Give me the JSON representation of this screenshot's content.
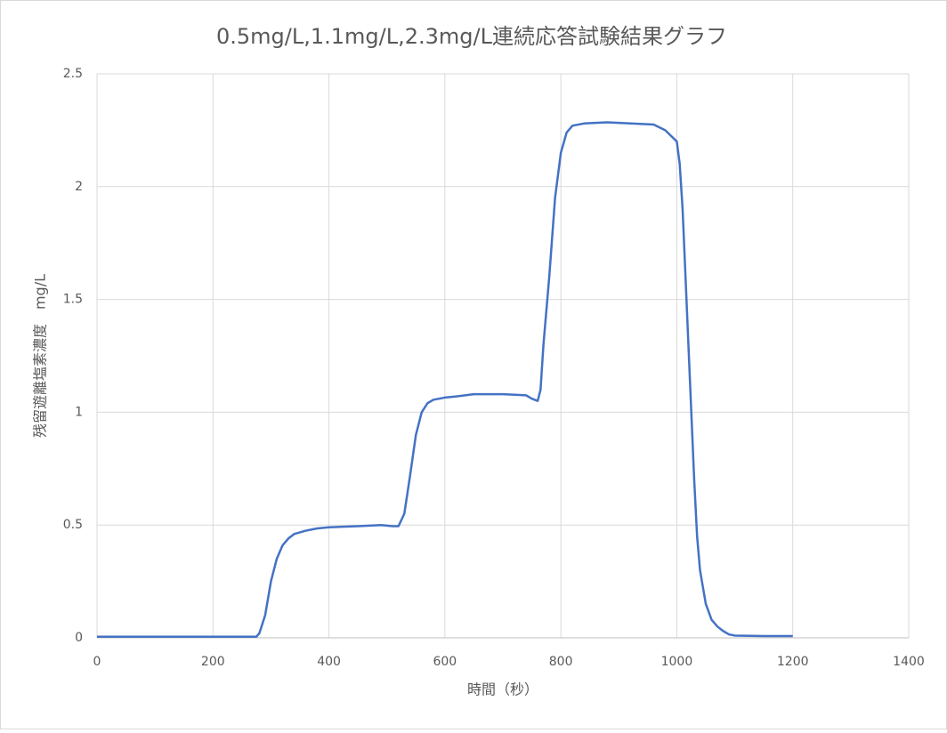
{
  "chart_data": {
    "type": "line",
    "title": "0.5mg/L,1.1mg/L,2.3mg/L連続応答試験結果グラフ",
    "x_label": "時間（秒）",
    "y_label": "残留遊離塩素濃度　mg/L",
    "x": [
      0,
      50,
      100,
      150,
      200,
      250,
      275,
      280,
      290,
      300,
      310,
      320,
      330,
      340,
      360,
      380,
      400,
      450,
      490,
      510,
      520,
      530,
      540,
      550,
      560,
      570,
      580,
      600,
      620,
      650,
      700,
      740,
      750,
      760,
      765,
      770,
      780,
      790,
      800,
      810,
      820,
      840,
      880,
      920,
      960,
      980,
      1000,
      1005,
      1010,
      1015,
      1020,
      1025,
      1030,
      1035,
      1040,
      1050,
      1060,
      1070,
      1080,
      1090,
      1100,
      1150,
      1200
    ],
    "series": [
      {
        "name": "残留遊離塩素濃度",
        "color": "#4472c4",
        "values": [
          0.005,
          0.005,
          0.005,
          0.005,
          0.005,
          0.005,
          0.005,
          0.02,
          0.1,
          0.25,
          0.35,
          0.41,
          0.44,
          0.46,
          0.475,
          0.485,
          0.49,
          0.495,
          0.5,
          0.495,
          0.495,
          0.55,
          0.72,
          0.9,
          1.0,
          1.04,
          1.055,
          1.065,
          1.07,
          1.08,
          1.08,
          1.075,
          1.06,
          1.05,
          1.1,
          1.3,
          1.6,
          1.95,
          2.15,
          2.24,
          2.27,
          2.28,
          2.285,
          2.28,
          2.275,
          2.25,
          2.2,
          2.1,
          1.9,
          1.6,
          1.3,
          1.0,
          0.7,
          0.45,
          0.3,
          0.15,
          0.08,
          0.05,
          0.03,
          0.015,
          0.01,
          0.008,
          0.008
        ]
      }
    ],
    "xlim": [
      0,
      1400
    ],
    "xticks": [
      0,
      200,
      400,
      600,
      800,
      1000,
      1200,
      1400
    ],
    "ylim": [
      0,
      2.5
    ],
    "yticks": [
      0,
      0.5,
      1,
      1.5,
      2,
      2.5
    ],
    "grid": true
  }
}
